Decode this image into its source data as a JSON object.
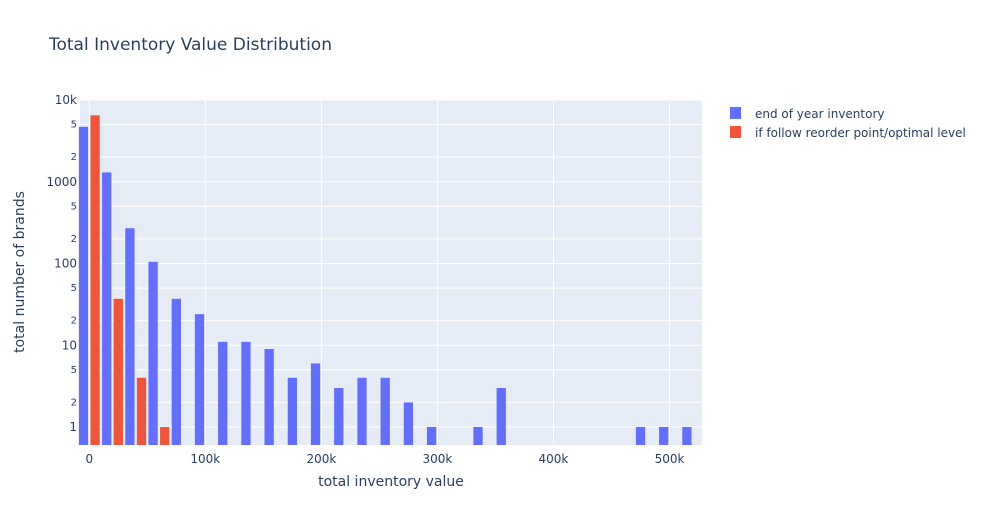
{
  "chart_data": {
    "type": "bar",
    "title": "Total Inventory Value Distribution",
    "xlabel": "total inventory value",
    "ylabel": "total number of brands",
    "y_scale": "log",
    "xlim": [
      -8000,
      528000
    ],
    "ylim_log10": [
      -0.22,
      4.0
    ],
    "bin_size": 20000,
    "x_ticks": [
      {
        "value": 0,
        "label": "0"
      },
      {
        "value": 100000,
        "label": "100k"
      },
      {
        "value": 200000,
        "label": "200k"
      },
      {
        "value": 300000,
        "label": "300k"
      },
      {
        "value": 400000,
        "label": "400k"
      },
      {
        "value": 500000,
        "label": "500k"
      }
    ],
    "y_major_ticks": [
      {
        "value": 1,
        "label": "1"
      },
      {
        "value": 10,
        "label": "10"
      },
      {
        "value": 100,
        "label": "100"
      },
      {
        "value": 1000,
        "label": "1000"
      },
      {
        "value": 10000,
        "label": "10k"
      }
    ],
    "y_minor_ticks": [
      {
        "value": 2,
        "label": "2"
      },
      {
        "value": 5,
        "label": "5"
      },
      {
        "value": 20,
        "label": "2"
      },
      {
        "value": 50,
        "label": "5"
      },
      {
        "value": 200,
        "label": "2"
      },
      {
        "value": 500,
        "label": "5"
      },
      {
        "value": 2000,
        "label": "2"
      },
      {
        "value": 5000,
        "label": "5"
      }
    ],
    "legend_position": "top-right",
    "series": [
      {
        "name": "end of year inventory",
        "color": "#636efa",
        "bins": [
          0,
          20000,
          40000,
          60000,
          80000,
          100000,
          120000,
          140000,
          160000,
          180000,
          200000,
          220000,
          240000,
          260000,
          280000,
          300000,
          340000,
          360000,
          480000,
          500000,
          520000
        ],
        "values": [
          4700,
          1300,
          270,
          105,
          37,
          24,
          11,
          11,
          9,
          4,
          6,
          3,
          4,
          4,
          2,
          1,
          1,
          3,
          1,
          1,
          1
        ]
      },
      {
        "name": "if follow reorder point/optimal level",
        "color": "#ef553b",
        "bins": [
          0,
          20000,
          40000,
          60000
        ],
        "values": [
          6500,
          37,
          4,
          1
        ]
      }
    ]
  },
  "colors": {
    "plot_background": "#e5ecf6",
    "gridline": "#ffffff",
    "text": "#2a3f5f"
  }
}
